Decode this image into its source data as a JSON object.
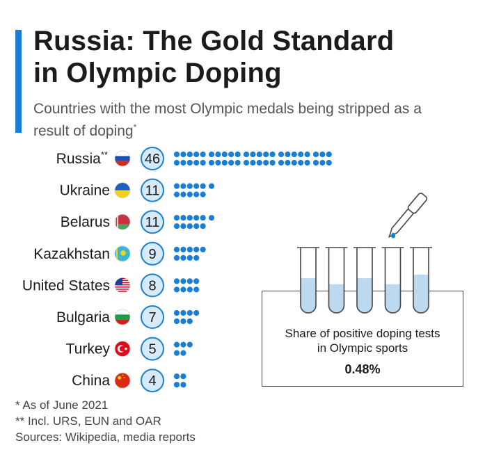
{
  "header": {
    "title_line1": "Russia: The Gold Standard",
    "title_line2": "in Olympic Doping",
    "subtitle": "Countries with the most Olympic medals being stripped as a result of doping",
    "subtitle_mark": "*"
  },
  "colors": {
    "accent": "#1a7fd4",
    "dot": "#1a7fd4",
    "badge_fill": "#d6eafa",
    "badge_stroke": "#1a7fd4",
    "liquid": "#bcd9f0"
  },
  "chart_data": {
    "type": "table",
    "title": "Russia: The Gold Standard in Olympic Doping",
    "subtitle": "Countries with the most Olympic medals being stripped as a result of doping",
    "categories": [
      "Russia",
      "Ukraine",
      "Belarus",
      "Kazakhstan",
      "United States",
      "Bulgaria",
      "Turkey",
      "China"
    ],
    "category_marks": [
      "**",
      "",
      "",
      "",
      "",
      "",
      "",
      ""
    ],
    "flag_icons": [
      "russia-flag-icon",
      "ukraine-flag-icon",
      "belarus-flag-icon",
      "kazakhstan-flag-icon",
      "united-states-flag-icon",
      "bulgaria-flag-icon",
      "turkey-flag-icon",
      "china-flag-icon"
    ],
    "values": [
      46,
      11,
      11,
      9,
      8,
      7,
      5,
      4
    ],
    "unit_icon": "dot-icon"
  },
  "panel": {
    "icon": "test-tubes-pipette-icon",
    "label_line1": "Share of positive doping tests",
    "label_line2": "in Olympic sports",
    "value": "0.48%",
    "tube_fill_levels": [
      0.58,
      0.48,
      0.58,
      0.48,
      0.64
    ]
  },
  "notes": {
    "note1": "*  As of June 2021",
    "note2": "** Incl. URS, EUN and OAR",
    "sources": "Sources: Wikipedia, media reports"
  }
}
